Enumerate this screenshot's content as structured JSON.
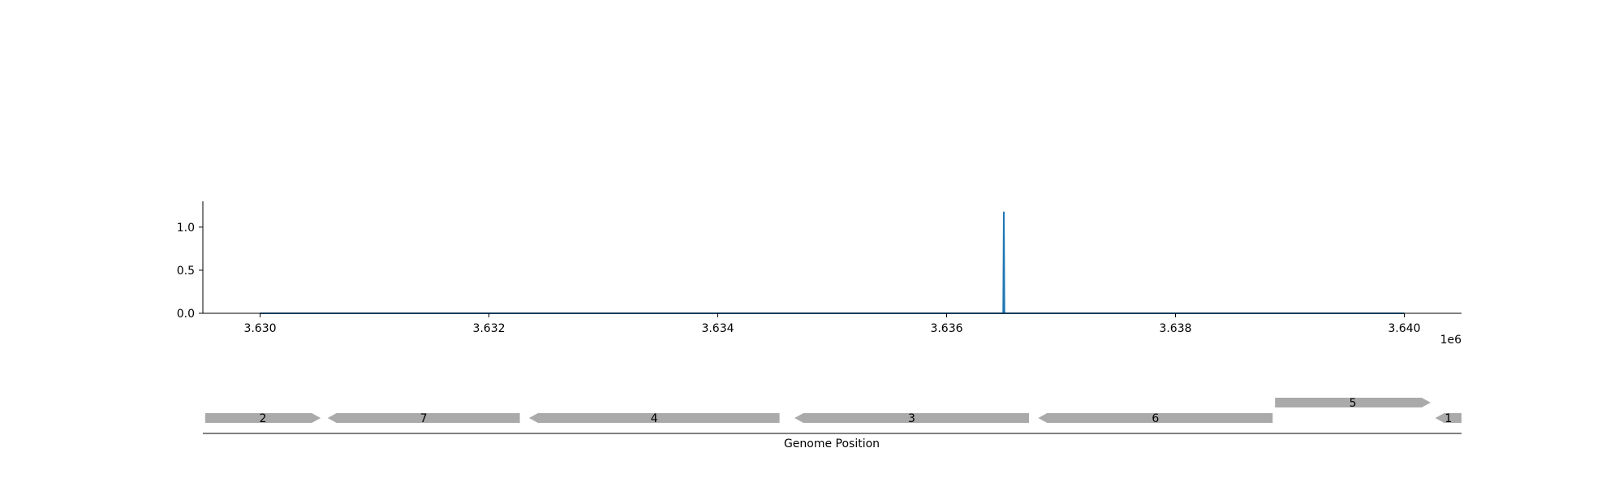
{
  "chart_data": [
    {
      "type": "line",
      "x_offset_label": "1e6",
      "xlim": [
        3629500,
        3640500
      ],
      "ylim": [
        0,
        1.3
      ],
      "x_ticks": [
        {
          "value": 3630000,
          "label": "3.630"
        },
        {
          "value": 3632000,
          "label": "3.632"
        },
        {
          "value": 3634000,
          "label": "3.634"
        },
        {
          "value": 3636000,
          "label": "3.636"
        },
        {
          "value": 3638000,
          "label": "3.638"
        },
        {
          "value": 3640000,
          "label": "3.640"
        }
      ],
      "y_ticks": [
        {
          "value": 0.0,
          "label": "0.0"
        },
        {
          "value": 0.5,
          "label": "0.5"
        },
        {
          "value": 1.0,
          "label": "1.0"
        }
      ],
      "series": [
        {
          "color": "#1f77b4",
          "points": [
            [
              3630000,
              0
            ],
            [
              3636495,
              0
            ],
            [
              3636500,
              1.18
            ],
            [
              3636505,
              0
            ],
            [
              3640000,
              0
            ]
          ]
        }
      ],
      "grid": false
    },
    {
      "type": "gene-track",
      "xlabel": "Genome Position",
      "xlim": [
        3629500,
        3640500
      ],
      "genes": [
        {
          "label": "2",
          "start": 3629520,
          "end": 3630530,
          "strand": "+",
          "row": 0
        },
        {
          "label": "7",
          "start": 3630590,
          "end": 3632270,
          "strand": "-",
          "row": 0
        },
        {
          "label": "4",
          "start": 3632350,
          "end": 3634540,
          "strand": "-",
          "row": 0
        },
        {
          "label": "3",
          "start": 3634670,
          "end": 3636720,
          "strand": "-",
          "row": 0
        },
        {
          "label": "6",
          "start": 3636800,
          "end": 3638850,
          "strand": "-",
          "row": 0
        },
        {
          "label": "5",
          "start": 3638870,
          "end": 3640230,
          "strand": "+",
          "row": 1
        },
        {
          "label": "1",
          "start": 3640270,
          "end": 3640500,
          "strand": "-",
          "row": 0
        }
      ],
      "color": "#aaaaaa"
    }
  ]
}
